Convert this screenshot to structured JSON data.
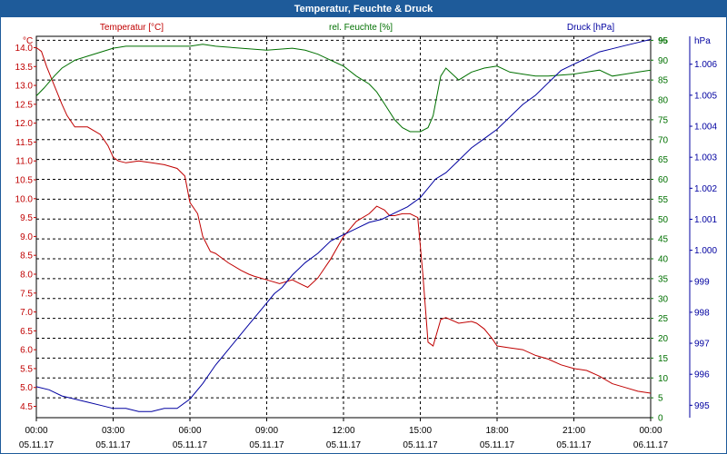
{
  "window": {
    "title": "Temperatur, Feuchte & Druck"
  },
  "colors": {
    "frame": "#1e5b9a",
    "temperature": "#c00000",
    "humidity": "#007000",
    "pressure": "#0000a0",
    "grid": "#000000"
  },
  "chart_data": {
    "type": "line",
    "title": "Temperatur, Feuchte & Druck",
    "grid": true,
    "x_ticks": [
      {
        "time": "00:00",
        "date": "05.11.17"
      },
      {
        "time": "03:00",
        "date": "05.11.17"
      },
      {
        "time": "06:00",
        "date": "05.11.17"
      },
      {
        "time": "09:00",
        "date": "05.11.17"
      },
      {
        "time": "12:00",
        "date": "05.11.17"
      },
      {
        "time": "15:00",
        "date": "05.11.17"
      },
      {
        "time": "18:00",
        "date": "05.11.17"
      },
      {
        "time": "21:00",
        "date": "05.11.17"
      },
      {
        "time": "00:00",
        "date": "06.11.17"
      }
    ],
    "axes": {
      "temperature": {
        "label": "Temperatur [°C]",
        "unit": "°C",
        "ylim": [
          4.2,
          14.3
        ],
        "ticks": [
          "4.5",
          "5.0",
          "5.5",
          "6.0",
          "6.5",
          "7.0",
          "7.5",
          "8.0",
          "8.5",
          "9.0",
          "9.5",
          "10.0",
          "10.5",
          "11.0",
          "11.5",
          "12.0",
          "12.5",
          "13.0",
          "13.5",
          "14.0"
        ]
      },
      "humidity": {
        "label": "rel. Feuchte [%]",
        "unit": "%",
        "ylim": [
          0,
          96
        ],
        "ticks": [
          "0",
          "5",
          "10",
          "15",
          "20",
          "25",
          "30",
          "35",
          "40",
          "45",
          "50",
          "55",
          "60",
          "65",
          "70",
          "75",
          "80",
          "85",
          "90",
          "95"
        ]
      },
      "pressure": {
        "label": "Druck [hPa]",
        "unit": "hPa",
        "ylim": [
          994.6,
          1006.9
        ],
        "ticks": [
          "995",
          "996",
          "997",
          "998",
          "999",
          "1.000",
          "1.001",
          "1.002",
          "1.003",
          "1.004",
          "1.005",
          "1.006"
        ]
      }
    },
    "series": [
      {
        "name": "Temperatur [°C]",
        "axis": "temperature",
        "x": [
          0,
          0.2,
          0.4,
          0.7,
          1.0,
          1.2,
          1.5,
          2.0,
          2.5,
          2.8,
          3.0,
          3.2,
          3.5,
          4.0,
          4.5,
          5.0,
          5.5,
          5.8,
          6.0,
          6.3,
          6.5,
          6.8,
          7.0,
          7.5,
          8.0,
          8.3,
          8.5,
          9.0,
          9.5,
          10.0,
          10.3,
          10.6,
          11.0,
          11.5,
          12.0,
          12.5,
          13.0,
          13.3,
          13.6,
          13.8,
          14.0,
          14.3,
          14.6,
          14.9,
          15.1,
          15.3,
          15.5,
          15.8,
          16.0,
          16.5,
          17.0,
          17.2,
          17.5,
          17.8,
          18.0,
          18.5,
          19.0,
          19.5,
          20.0,
          20.5,
          21.0,
          21.5,
          22.0,
          22.5,
          23.0,
          23.5,
          24.0
        ],
        "values": [
          14.0,
          13.9,
          13.5,
          13.0,
          12.5,
          12.2,
          11.9,
          11.9,
          11.7,
          11.4,
          11.1,
          11.0,
          10.95,
          11.0,
          10.95,
          10.9,
          10.8,
          10.6,
          9.9,
          9.6,
          9.0,
          8.6,
          8.55,
          8.3,
          8.1,
          8.0,
          7.95,
          7.85,
          7.75,
          7.85,
          7.75,
          7.65,
          7.9,
          8.4,
          9.0,
          9.4,
          9.6,
          9.8,
          9.7,
          9.55,
          9.55,
          9.6,
          9.6,
          9.5,
          8.0,
          6.2,
          6.1,
          6.8,
          6.85,
          6.7,
          6.75,
          6.7,
          6.55,
          6.3,
          6.1,
          6.05,
          6.0,
          5.85,
          5.75,
          5.6,
          5.5,
          5.45,
          5.3,
          5.1,
          5.0,
          4.9,
          4.85
        ]
      },
      {
        "name": "rel. Feuchte [%]",
        "axis": "humidity",
        "x": [
          0,
          0.3,
          0.7,
          1.0,
          1.5,
          2.0,
          2.5,
          3.0,
          3.5,
          4.0,
          5.0,
          6.0,
          6.5,
          7.0,
          8.0,
          9.0,
          10.0,
          10.5,
          11.0,
          11.5,
          12.0,
          12.5,
          13.0,
          13.3,
          13.6,
          14.0,
          14.3,
          14.6,
          15.0,
          15.3,
          15.5,
          15.8,
          16.0,
          16.5,
          17.0,
          17.5,
          18.0,
          18.5,
          19.0,
          19.5,
          20.0,
          21.0,
          21.5,
          22.0,
          22.5,
          23.0,
          23.5,
          24.0
        ],
        "values": [
          81,
          83,
          86,
          88,
          90,
          91,
          92,
          93,
          93.5,
          93.5,
          93.5,
          93.5,
          94,
          93.5,
          93,
          92.5,
          93,
          92.5,
          91.5,
          90,
          88.5,
          86,
          84,
          82,
          79,
          75,
          73,
          72,
          72,
          73,
          76,
          86,
          88,
          85,
          87,
          88,
          88.5,
          87,
          86.5,
          86,
          86,
          86.5,
          87,
          87.5,
          86,
          86.5,
          87,
          87.5
        ]
      },
      {
        "name": "Druck [hPa]",
        "axis": "pressure",
        "x": [
          0,
          0.5,
          1.0,
          1.5,
          2.0,
          2.5,
          3.0,
          3.5,
          4.0,
          4.5,
          5.0,
          5.5,
          6.0,
          6.5,
          7.0,
          7.5,
          8.0,
          8.5,
          9.0,
          9.3,
          9.6,
          10.0,
          10.5,
          11.0,
          11.5,
          12.0,
          12.5,
          13.0,
          13.5,
          14.0,
          14.5,
          15.0,
          15.3,
          15.6,
          16.0,
          16.5,
          17.0,
          17.5,
          18.0,
          18.5,
          19.0,
          19.5,
          20.0,
          20.5,
          21.0,
          21.5,
          22.0,
          22.5,
          23.0,
          23.5,
          24.0
        ],
        "values": [
          995.6,
          995.5,
          995.3,
          995.2,
          995.1,
          995.0,
          994.9,
          994.9,
          994.8,
          994.8,
          994.9,
          994.9,
          995.2,
          995.7,
          996.3,
          996.8,
          997.3,
          997.8,
          998.3,
          998.6,
          998.8,
          999.2,
          999.6,
          999.9,
          1000.3,
          1000.5,
          1000.7,
          1000.9,
          1001.0,
          1001.2,
          1001.4,
          1001.7,
          1002.0,
          1002.3,
          1002.5,
          1002.9,
          1003.3,
          1003.6,
          1003.9,
          1004.3,
          1004.7,
          1005.0,
          1005.4,
          1005.8,
          1006.0,
          1006.2,
          1006.4,
          1006.5,
          1006.6,
          1006.7,
          1006.8
        ]
      }
    ]
  }
}
